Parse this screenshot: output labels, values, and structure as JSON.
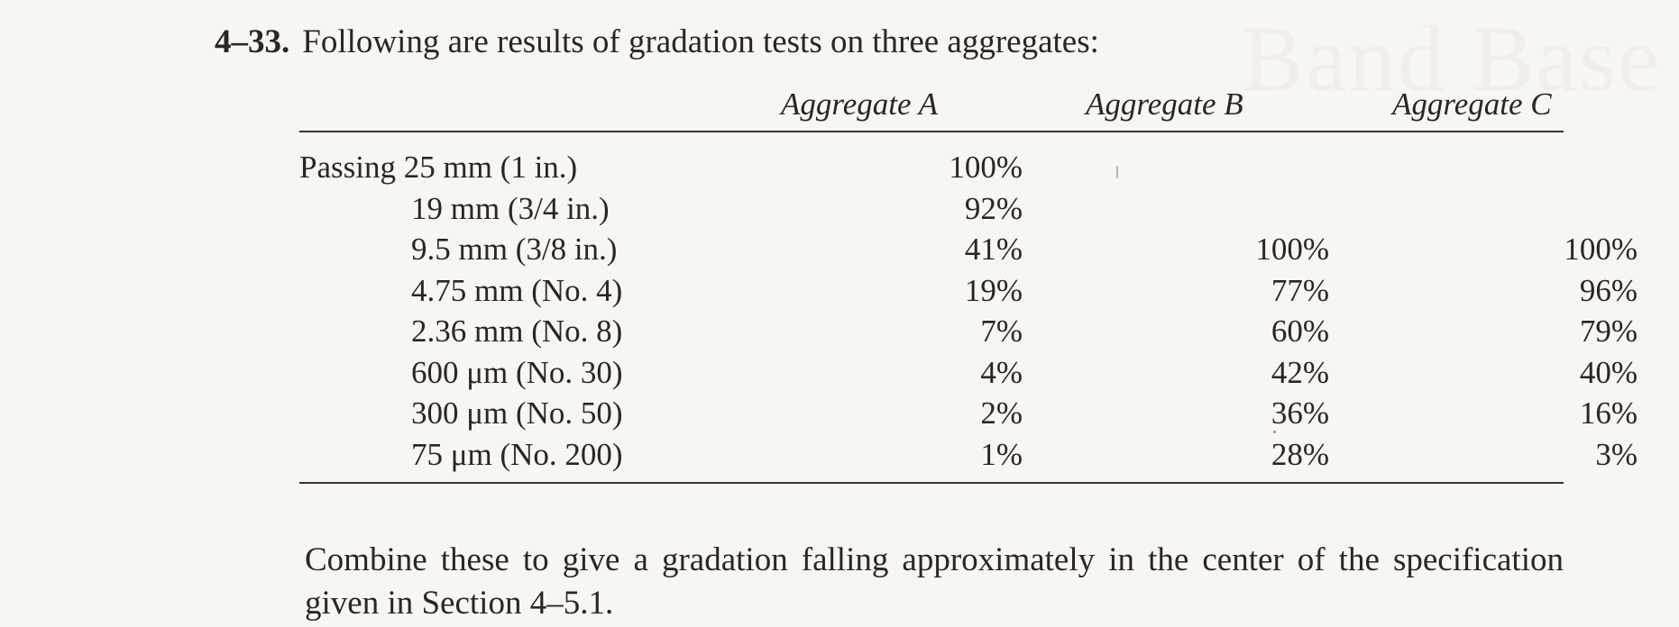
{
  "problem": {
    "number": "4–33.",
    "text": "Following are results of gradation tests on three aggregates:"
  },
  "table": {
    "headers": [
      "Aggregate A",
      "Aggregate B",
      "Aggregate C"
    ],
    "rows": [
      {
        "label": "Passing 25 mm (1 in.)",
        "a": "100%",
        "b": "",
        "c": ""
      },
      {
        "label": "19 mm (3/4 in.)",
        "a": "92%",
        "b": "",
        "c": ""
      },
      {
        "label": "9.5 mm (3/8 in.)",
        "a": "41%",
        "b": "100%",
        "c": "100%"
      },
      {
        "label": "4.75 mm (No. 4)",
        "a": "19%",
        "b": "77%",
        "c": "96%"
      },
      {
        "label": "2.36 mm (No. 8)",
        "a": "7%",
        "b": "60%",
        "c": "79%"
      },
      {
        "label": "600 μm (No. 30)",
        "a": "4%",
        "b": "42%",
        "c": "40%"
      },
      {
        "label": "300 μm (No. 50)",
        "a": "2%",
        "b": "36%",
        "c": "16%"
      },
      {
        "label": "75 μm (No. 200)",
        "a": "1%",
        "b": "28%",
        "c": "3%"
      }
    ]
  },
  "footer": {
    "text": "Combine these to give a gradation falling approximately in the center of the specification given in Section 4–5.1."
  },
  "colors": {
    "paper": "#f8f6f1",
    "ink": "#2a2622"
  }
}
